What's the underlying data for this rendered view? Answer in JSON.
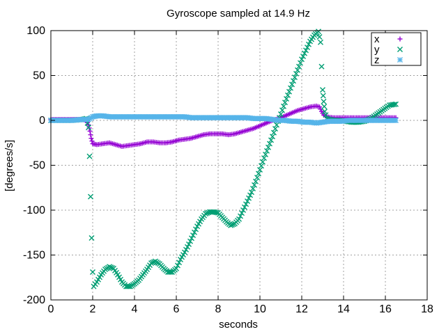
{
  "chart_data": {
    "type": "scatter",
    "title": "Gyroscope sampled at 14.9 Hz",
    "xlabel": "seconds",
    "ylabel": "[degrees/s]",
    "xlim": [
      0,
      18
    ],
    "ylim": [
      -200,
      100
    ],
    "xticks": [
      0,
      2,
      4,
      6,
      8,
      10,
      12,
      14,
      16,
      18
    ],
    "yticks": [
      -200,
      -150,
      -100,
      -50,
      0,
      50,
      100
    ],
    "grid": true,
    "legend_position": "top-right",
    "series": [
      {
        "name": "x",
        "color": "#9400d3",
        "marker": "plus",
        "points": [
          [
            0,
            1
          ],
          [
            0.5,
            1
          ],
          [
            1,
            1
          ],
          [
            1.5,
            1
          ],
          [
            1.7,
            0
          ],
          [
            1.8,
            -5
          ],
          [
            1.87,
            -12
          ],
          [
            1.93,
            -20
          ],
          [
            2,
            -26
          ],
          [
            2.2,
            -27
          ],
          [
            2.5,
            -26
          ],
          [
            2.8,
            -25
          ],
          [
            3.1,
            -27
          ],
          [
            3.4,
            -29
          ],
          [
            3.7,
            -28
          ],
          [
            4,
            -27
          ],
          [
            4.3,
            -26
          ],
          [
            4.6,
            -24
          ],
          [
            4.9,
            -24
          ],
          [
            5.2,
            -25
          ],
          [
            5.5,
            -25
          ],
          [
            5.8,
            -24
          ],
          [
            6.1,
            -22
          ],
          [
            6.4,
            -21
          ],
          [
            6.7,
            -20
          ],
          [
            7,
            -18
          ],
          [
            7.3,
            -16
          ],
          [
            7.6,
            -15
          ],
          [
            7.9,
            -15
          ],
          [
            8.2,
            -15
          ],
          [
            8.5,
            -16
          ],
          [
            8.8,
            -15
          ],
          [
            9.1,
            -13
          ],
          [
            9.4,
            -11
          ],
          [
            9.7,
            -9
          ],
          [
            10,
            -6
          ],
          [
            10.3,
            -3
          ],
          [
            10.6,
            0
          ],
          [
            10.9,
            2
          ],
          [
            11.2,
            5
          ],
          [
            11.5,
            8
          ],
          [
            11.8,
            11
          ],
          [
            12.1,
            13
          ],
          [
            12.4,
            15
          ],
          [
            12.7,
            16
          ],
          [
            12.85,
            15
          ],
          [
            12.95,
            10
          ],
          [
            13.05,
            6
          ],
          [
            13.2,
            4
          ],
          [
            13.5,
            3
          ],
          [
            13.8,
            3
          ],
          [
            14.1,
            3
          ],
          [
            14.4,
            3
          ],
          [
            14.7,
            3
          ],
          [
            15,
            3
          ],
          [
            15.3,
            3
          ],
          [
            15.6,
            3
          ],
          [
            15.9,
            3
          ],
          [
            16.2,
            3
          ],
          [
            16.5,
            3
          ]
        ]
      },
      {
        "name": "y",
        "color": "#009e73",
        "marker": "cross",
        "points": [
          [
            0,
            0
          ],
          [
            0.5,
            0
          ],
          [
            1,
            0
          ],
          [
            1.5,
            1
          ],
          [
            1.7,
            2
          ],
          [
            1.8,
            -8
          ],
          [
            1.85,
            -40
          ],
          [
            1.9,
            -85
          ],
          [
            1.95,
            -131
          ],
          [
            2,
            -169
          ],
          [
            2.05,
            -185
          ],
          [
            2.2,
            -180
          ],
          [
            2.4,
            -172
          ],
          [
            2.6,
            -166
          ],
          [
            2.8,
            -163
          ],
          [
            3,
            -165
          ],
          [
            3.2,
            -172
          ],
          [
            3.4,
            -180
          ],
          [
            3.6,
            -185
          ],
          [
            3.8,
            -185
          ],
          [
            4,
            -182
          ],
          [
            4.2,
            -178
          ],
          [
            4.4,
            -172
          ],
          [
            4.6,
            -166
          ],
          [
            4.8,
            -159
          ],
          [
            5,
            -157
          ],
          [
            5.2,
            -160
          ],
          [
            5.4,
            -165
          ],
          [
            5.6,
            -169
          ],
          [
            5.8,
            -169
          ],
          [
            6,
            -165
          ],
          [
            6.2,
            -155
          ],
          [
            6.4,
            -147
          ],
          [
            6.6,
            -138
          ],
          [
            6.8,
            -128
          ],
          [
            7,
            -118
          ],
          [
            7.2,
            -110
          ],
          [
            7.4,
            -104
          ],
          [
            7.6,
            -102
          ],
          [
            7.8,
            -102
          ],
          [
            8,
            -103
          ],
          [
            8.2,
            -108
          ],
          [
            8.4,
            -113
          ],
          [
            8.6,
            -117
          ],
          [
            8.8,
            -115
          ],
          [
            9,
            -110
          ],
          [
            9.2,
            -100
          ],
          [
            9.4,
            -90
          ],
          [
            9.6,
            -80
          ],
          [
            9.8,
            -68
          ],
          [
            10,
            -55
          ],
          [
            10.2,
            -42
          ],
          [
            10.4,
            -30
          ],
          [
            10.6,
            -18
          ],
          [
            10.8,
            -5
          ],
          [
            11,
            7
          ],
          [
            11.2,
            20
          ],
          [
            11.4,
            32
          ],
          [
            11.6,
            44
          ],
          [
            11.8,
            56
          ],
          [
            12,
            68
          ],
          [
            12.2,
            78
          ],
          [
            12.4,
            88
          ],
          [
            12.6,
            95
          ],
          [
            12.8,
            99
          ],
          [
            12.9,
            87
          ],
          [
            12.95,
            60
          ],
          [
            13,
            34
          ],
          [
            13.05,
            21
          ],
          [
            13.1,
            10
          ],
          [
            13.2,
            2
          ],
          [
            13.5,
            0
          ],
          [
            13.8,
            0
          ],
          [
            14.1,
            -1
          ],
          [
            14.4,
            -2
          ],
          [
            14.7,
            -2
          ],
          [
            15,
            -1
          ],
          [
            15.3,
            2
          ],
          [
            15.6,
            7
          ],
          [
            15.9,
            12
          ],
          [
            16.2,
            17
          ],
          [
            16.5,
            18
          ]
        ]
      },
      {
        "name": "z",
        "color": "#56b4e9",
        "marker": "star",
        "points": [
          [
            0,
            0
          ],
          [
            0.5,
            0
          ],
          [
            1,
            0
          ],
          [
            1.5,
            1
          ],
          [
            1.8,
            1
          ],
          [
            2,
            4
          ],
          [
            2.2,
            5
          ],
          [
            2.5,
            5
          ],
          [
            2.8,
            4
          ],
          [
            3.1,
            4
          ],
          [
            3.4,
            4
          ],
          [
            3.7,
            4
          ],
          [
            4,
            4
          ],
          [
            4.3,
            4
          ],
          [
            4.6,
            4
          ],
          [
            4.9,
            4
          ],
          [
            5.2,
            4
          ],
          [
            5.5,
            4
          ],
          [
            5.8,
            4
          ],
          [
            6.1,
            4
          ],
          [
            6.4,
            4
          ],
          [
            6.7,
            3
          ],
          [
            7,
            3
          ],
          [
            7.3,
            3
          ],
          [
            7.6,
            3
          ],
          [
            7.9,
            3
          ],
          [
            8.2,
            3
          ],
          [
            8.5,
            3
          ],
          [
            8.8,
            3
          ],
          [
            9.1,
            3
          ],
          [
            9.4,
            3
          ],
          [
            9.7,
            2
          ],
          [
            10,
            2
          ],
          [
            10.3,
            2
          ],
          [
            10.6,
            1
          ],
          [
            10.9,
            0
          ],
          [
            11.2,
            0
          ],
          [
            11.5,
            -1
          ],
          [
            11.8,
            -1
          ],
          [
            12.1,
            -2
          ],
          [
            12.4,
            -2
          ],
          [
            12.7,
            -3
          ],
          [
            13,
            -2
          ],
          [
            13.3,
            -1
          ],
          [
            13.6,
            -1
          ],
          [
            13.9,
            -1
          ],
          [
            14.2,
            0
          ],
          [
            14.5,
            0
          ],
          [
            14.8,
            0
          ],
          [
            15.1,
            0
          ],
          [
            15.4,
            0
          ],
          [
            15.7,
            0
          ],
          [
            16,
            0
          ],
          [
            16.3,
            0
          ],
          [
            16.5,
            0
          ]
        ]
      }
    ]
  }
}
